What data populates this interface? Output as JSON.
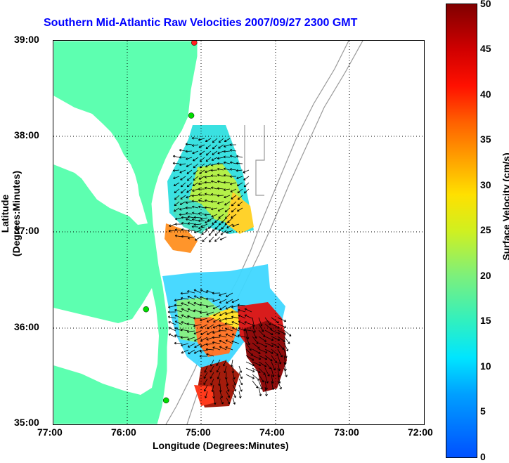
{
  "title": "Southern Mid-Atlantic Raw Velocities 2007/09/27 2300 GMT",
  "axes": {
    "xlabel": "Longitude (Degrees:Minutes)",
    "ylabel": "Latitude (Degrees:Minutes)",
    "xticks": [
      "77:00",
      "76:00",
      "75:00",
      "74:00",
      "73:00",
      "72:00"
    ],
    "yticks": [
      "39:00",
      "38:00",
      "37:00",
      "36:00",
      "35:00"
    ],
    "xlim": [
      -77,
      -72
    ],
    "ylim": [
      35,
      39
    ],
    "grid": "dotted"
  },
  "colorbar": {
    "label": "Surface Velocity (cm/s)",
    "ticks": [
      "50",
      "45",
      "40",
      "35",
      "30",
      "25",
      "20",
      "15",
      "10",
      "5",
      "0"
    ],
    "range": [
      0,
      50
    ]
  },
  "colors": {
    "land": "#5dffb0",
    "title": "#0000ff",
    "bathymetry": "#999999",
    "station": "#00dd00",
    "station_active": "#ff2020"
  },
  "stations": [
    {
      "lon": -75.1,
      "lat": 38.98,
      "status": "active"
    },
    {
      "lon": -75.14,
      "lat": 38.22,
      "status": "normal"
    },
    {
      "lon": -75.75,
      "lat": 36.2,
      "status": "normal"
    },
    {
      "lon": -75.48,
      "lat": 35.25,
      "status": "normal"
    }
  ]
}
